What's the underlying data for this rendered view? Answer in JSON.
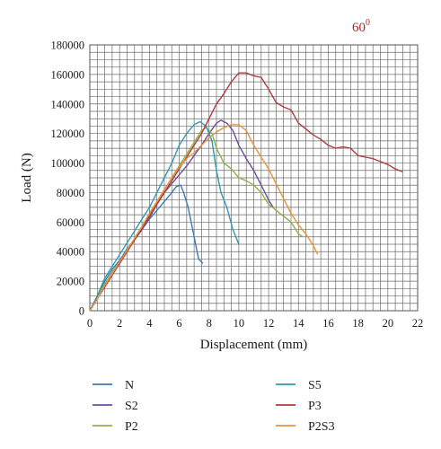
{
  "chart_data": {
    "type": "line",
    "xlabel": "Displacement (mm)",
    "ylabel": "Load (N)",
    "xlim": [
      0,
      22
    ],
    "ylim": [
      0,
      180000
    ],
    "x_ticks": [
      0,
      2,
      4,
      6,
      8,
      10,
      12,
      14,
      16,
      18,
      20,
      22
    ],
    "y_ticks": [
      0,
      20000,
      40000,
      60000,
      80000,
      100000,
      120000,
      140000,
      160000,
      180000
    ],
    "x_tick_labels": [
      "0",
      "2",
      "4",
      "6",
      "8",
      "10",
      "12",
      "14",
      "16",
      "18",
      "20",
      "22"
    ],
    "y_tick_labels": [
      "0",
      "20000",
      "40000",
      "60000",
      "80000",
      "100000",
      "120000",
      "140000",
      "160000",
      "180000"
    ],
    "grid": true,
    "grid_minor_x_step": 0.5,
    "grid_minor_y_step": 5000,
    "annotation": {
      "base": "60",
      "sup": "0",
      "color": "#b22222"
    },
    "legend_position": "bottom",
    "series": [
      {
        "name": "N",
        "color": "#3d7bb5",
        "points": [
          [
            0,
            0
          ],
          [
            0.5,
            10000
          ],
          [
            1,
            20000
          ],
          [
            1.5,
            28000
          ],
          [
            2,
            34000
          ],
          [
            2.5,
            42000
          ],
          [
            3,
            48000
          ],
          [
            3.5,
            55000
          ],
          [
            4,
            62000
          ],
          [
            4.5,
            68000
          ],
          [
            5,
            74000
          ],
          [
            5.5,
            80000
          ],
          [
            5.8,
            84000
          ],
          [
            6.1,
            85000
          ],
          [
            6.3,
            80000
          ],
          [
            6.6,
            70000
          ],
          [
            6.9,
            55000
          ],
          [
            7.1,
            45000
          ],
          [
            7.3,
            35000
          ],
          [
            7.6,
            32000
          ]
        ]
      },
      {
        "name": "S2",
        "color": "#6a4fa0",
        "points": [
          [
            0,
            0
          ],
          [
            0.5,
            8000
          ],
          [
            1,
            18000
          ],
          [
            1.5,
            25000
          ],
          [
            2,
            32000
          ],
          [
            2.5,
            40000
          ],
          [
            3,
            48000
          ],
          [
            3.5,
            55000
          ],
          [
            4,
            63000
          ],
          [
            4.5,
            72000
          ],
          [
            5,
            80000
          ],
          [
            5.5,
            86000
          ],
          [
            6,
            92000
          ],
          [
            6.5,
            98000
          ],
          [
            7,
            105000
          ],
          [
            7.5,
            112000
          ],
          [
            8,
            120000
          ],
          [
            8.5,
            127000
          ],
          [
            8.8,
            129000
          ],
          [
            9.2,
            127000
          ],
          [
            9.6,
            122000
          ],
          [
            10,
            112000
          ],
          [
            10.5,
            103000
          ],
          [
            11,
            95000
          ],
          [
            11.5,
            85000
          ],
          [
            12,
            75000
          ],
          [
            12.3,
            70000
          ]
        ]
      },
      {
        "name": "P2",
        "color": "#8fb046",
        "points": [
          [
            0,
            0
          ],
          [
            0.5,
            9000
          ],
          [
            1,
            18000
          ],
          [
            1.5,
            26000
          ],
          [
            2,
            33000
          ],
          [
            2.5,
            41000
          ],
          [
            3,
            49000
          ],
          [
            3.5,
            57000
          ],
          [
            4,
            65000
          ],
          [
            4.5,
            73000
          ],
          [
            5,
            82000
          ],
          [
            5.5,
            90000
          ],
          [
            6,
            98000
          ],
          [
            6.5,
            106000
          ],
          [
            7,
            114000
          ],
          [
            7.5,
            122000
          ],
          [
            7.8,
            124000
          ],
          [
            8.2,
            120000
          ],
          [
            8.5,
            110000
          ],
          [
            9,
            100000
          ],
          [
            9.5,
            96000
          ],
          [
            10,
            90000
          ],
          [
            10.5,
            88000
          ],
          [
            11,
            85000
          ],
          [
            11.5,
            80000
          ],
          [
            12,
            72000
          ],
          [
            12.5,
            68000
          ],
          [
            13,
            64000
          ],
          [
            13.5,
            60000
          ],
          [
            14,
            52000
          ],
          [
            14.3,
            50000
          ]
        ]
      },
      {
        "name": "S5",
        "color": "#2c9bb4",
        "points": [
          [
            0,
            0
          ],
          [
            0.5,
            10000
          ],
          [
            1,
            22000
          ],
          [
            1.5,
            30000
          ],
          [
            2,
            38000
          ],
          [
            2.5,
            46000
          ],
          [
            3,
            54000
          ],
          [
            3.5,
            62000
          ],
          [
            4,
            70000
          ],
          [
            4.5,
            80000
          ],
          [
            5,
            90000
          ],
          [
            5.5,
            100000
          ],
          [
            6,
            112000
          ],
          [
            6.5,
            120000
          ],
          [
            7,
            126000
          ],
          [
            7.4,
            128000
          ],
          [
            7.8,
            125000
          ],
          [
            8.2,
            115000
          ],
          [
            8.5,
            95000
          ],
          [
            8.8,
            80000
          ],
          [
            9.2,
            70000
          ],
          [
            9.6,
            55000
          ],
          [
            10,
            45000
          ]
        ]
      },
      {
        "name": "P3",
        "color": "#b03a3e",
        "points": [
          [
            0,
            0
          ],
          [
            0.5,
            8000
          ],
          [
            1,
            16000
          ],
          [
            1.5,
            24000
          ],
          [
            2,
            32000
          ],
          [
            2.5,
            40000
          ],
          [
            3,
            48000
          ],
          [
            3.5,
            56000
          ],
          [
            4,
            64000
          ],
          [
            4.5,
            72000
          ],
          [
            5,
            80000
          ],
          [
            5.5,
            88000
          ],
          [
            6,
            96000
          ],
          [
            6.5,
            104000
          ],
          [
            7,
            112000
          ],
          [
            7.5,
            120000
          ],
          [
            8,
            130000
          ],
          [
            8.5,
            140000
          ],
          [
            9,
            147000
          ],
          [
            9.5,
            155000
          ],
          [
            10,
            161000
          ],
          [
            10.5,
            161000
          ],
          [
            11,
            159000
          ],
          [
            11.5,
            158000
          ],
          [
            12,
            150000
          ],
          [
            12.5,
            141000
          ],
          [
            13,
            138000
          ],
          [
            13.5,
            136000
          ],
          [
            14,
            127000
          ],
          [
            14.5,
            123000
          ],
          [
            15,
            119000
          ],
          [
            15.5,
            116000
          ],
          [
            16,
            112000
          ],
          [
            16.5,
            110000
          ],
          [
            17,
            111000
          ],
          [
            17.5,
            110000
          ],
          [
            18,
            105000
          ],
          [
            18.5,
            104000
          ],
          [
            19,
            103000
          ],
          [
            19.5,
            101000
          ],
          [
            20,
            99000
          ],
          [
            20.5,
            96000
          ],
          [
            21,
            94000
          ]
        ]
      },
      {
        "name": "P2S3",
        "color": "#e8923a",
        "points": [
          [
            0,
            0
          ],
          [
            0.5,
            8000
          ],
          [
            1,
            17000
          ],
          [
            1.5,
            25000
          ],
          [
            2,
            33000
          ],
          [
            2.5,
            41000
          ],
          [
            3,
            49000
          ],
          [
            3.5,
            57000
          ],
          [
            4,
            66000
          ],
          [
            4.5,
            74000
          ],
          [
            5,
            82000
          ],
          [
            5.5,
            90000
          ],
          [
            6,
            97000
          ],
          [
            6.5,
            103000
          ],
          [
            7,
            107000
          ],
          [
            7.5,
            112000
          ],
          [
            8,
            117000
          ],
          [
            8.5,
            121000
          ],
          [
            9,
            124000
          ],
          [
            9.5,
            126000
          ],
          [
            10,
            126000
          ],
          [
            10.5,
            122000
          ],
          [
            11,
            112000
          ],
          [
            11.5,
            104000
          ],
          [
            12,
            96000
          ],
          [
            12.5,
            86000
          ],
          [
            13,
            76000
          ],
          [
            13.5,
            66000
          ],
          [
            14,
            58000
          ],
          [
            14.5,
            52000
          ],
          [
            15,
            44000
          ],
          [
            15.3,
            38000
          ]
        ]
      }
    ]
  }
}
